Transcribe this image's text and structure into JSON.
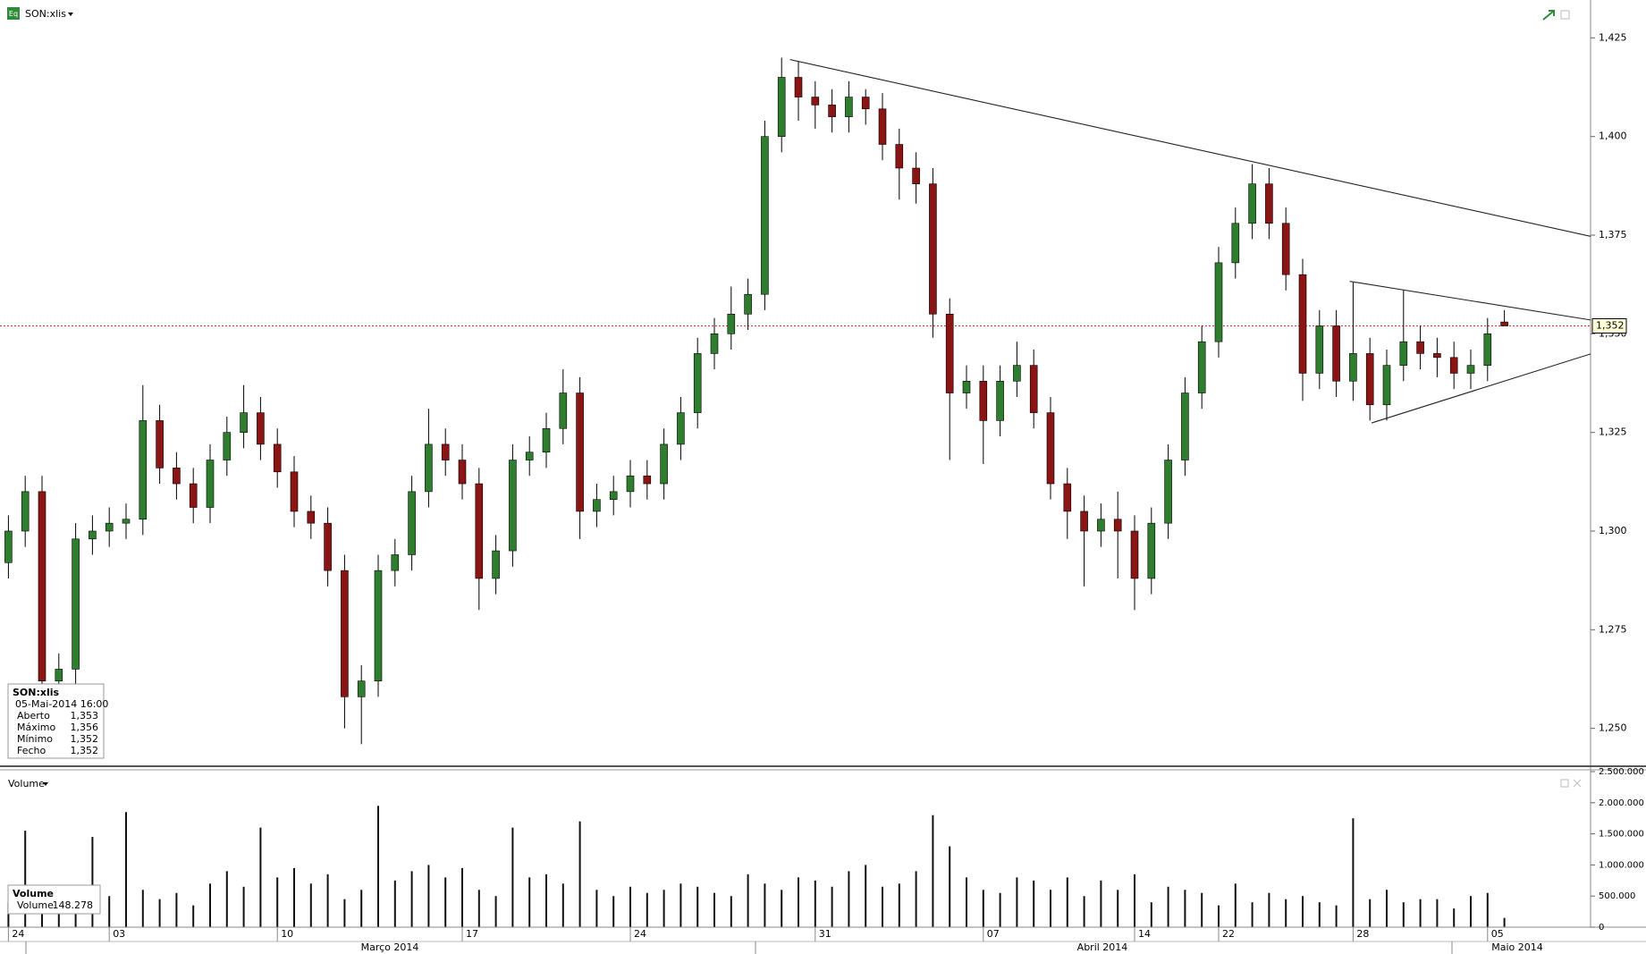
{
  "header": {
    "icon": "Eq",
    "symbol": "SON:xlis"
  },
  "chart_data": [
    {
      "type": "candlestick",
      "categories": [
        "24",
        null,
        null,
        null,
        null,
        null,
        "03",
        null,
        null,
        null,
        null,
        null,
        null,
        null,
        null,
        null,
        "10",
        null,
        null,
        null,
        null,
        null,
        null,
        null,
        null,
        null,
        null,
        "17",
        null,
        null,
        null,
        null,
        null,
        null,
        null,
        null,
        null,
        "24",
        null,
        null,
        null,
        null,
        null,
        null,
        null,
        null,
        null,
        null,
        "31",
        null,
        null,
        null,
        null,
        null,
        null,
        null,
        null,
        null,
        "07",
        null,
        null,
        null,
        null,
        null,
        null,
        null,
        null,
        "14",
        null,
        null,
        null,
        null,
        "22",
        null,
        null,
        null,
        null,
        null,
        null,
        null,
        "28",
        null,
        null,
        null,
        null,
        null,
        null,
        null,
        "05",
        null
      ],
      "x_groups": [
        "Março 2014",
        "Abril 2014",
        "Maio 2014"
      ],
      "open": [
        1.292,
        1.3,
        1.31,
        1.262,
        1.265,
        1.298,
        1.3,
        1.302,
        1.303,
        1.328,
        1.316,
        1.312,
        1.306,
        1.318,
        1.325,
        1.33,
        1.322,
        1.315,
        1.305,
        1.302,
        1.29,
        1.258,
        1.262,
        1.29,
        1.294,
        1.31,
        1.322,
        1.318,
        1.312,
        1.288,
        1.295,
        1.318,
        1.32,
        1.326,
        1.335,
        1.305,
        1.308,
        1.31,
        1.314,
        1.312,
        1.322,
        1.33,
        1.345,
        1.35,
        1.355,
        1.36,
        1.4,
        1.415,
        1.41,
        1.408,
        1.405,
        1.41,
        1.407,
        1.398,
        1.392,
        1.388,
        1.355,
        1.335,
        1.338,
        1.328,
        1.338,
        1.342,
        1.33,
        1.312,
        1.305,
        1.3,
        1.303,
        1.3,
        1.288,
        1.302,
        1.318,
        1.335,
        1.348,
        1.368,
        1.378,
        1.388,
        1.378,
        1.365,
        1.34,
        1.352,
        1.338,
        1.345,
        1.332,
        1.342,
        1.348,
        1.345,
        1.344,
        1.34,
        1.342,
        1.353
      ],
      "high": [
        1.304,
        1.314,
        1.314,
        1.269,
        1.302,
        1.304,
        1.306,
        1.307,
        1.337,
        1.332,
        1.32,
        1.316,
        1.322,
        1.329,
        1.337,
        1.334,
        1.326,
        1.319,
        1.309,
        1.306,
        1.294,
        1.266,
        1.294,
        1.298,
        1.314,
        1.331,
        1.326,
        1.322,
        1.316,
        1.299,
        1.322,
        1.324,
        1.33,
        1.341,
        1.339,
        1.312,
        1.314,
        1.318,
        1.318,
        1.326,
        1.334,
        1.349,
        1.354,
        1.362,
        1.364,
        1.404,
        1.42,
        1.419,
        1.414,
        1.412,
        1.414,
        1.412,
        1.411,
        1.402,
        1.396,
        1.392,
        1.359,
        1.342,
        1.342,
        1.342,
        1.348,
        1.346,
        1.334,
        1.316,
        1.309,
        1.307,
        1.31,
        1.304,
        1.306,
        1.322,
        1.339,
        1.352,
        1.372,
        1.382,
        1.393,
        1.392,
        1.382,
        1.369,
        1.356,
        1.356,
        1.363,
        1.349,
        1.346,
        1.361,
        1.352,
        1.349,
        1.348,
        1.346,
        1.354,
        1.356
      ],
      "low": [
        1.288,
        1.296,
        1.255,
        1.258,
        1.261,
        1.294,
        1.296,
        1.298,
        1.299,
        1.312,
        1.308,
        1.302,
        1.302,
        1.314,
        1.321,
        1.318,
        1.311,
        1.301,
        1.298,
        1.286,
        1.25,
        1.246,
        1.258,
        1.286,
        1.29,
        1.306,
        1.314,
        1.308,
        1.28,
        1.284,
        1.291,
        1.314,
        1.316,
        1.322,
        1.298,
        1.301,
        1.304,
        1.306,
        1.308,
        1.308,
        1.318,
        1.326,
        1.341,
        1.346,
        1.351,
        1.356,
        1.396,
        1.404,
        1.402,
        1.401,
        1.401,
        1.403,
        1.394,
        1.384,
        1.383,
        1.349,
        1.318,
        1.331,
        1.317,
        1.324,
        1.334,
        1.326,
        1.308,
        1.298,
        1.286,
        1.296,
        1.288,
        1.28,
        1.284,
        1.298,
        1.314,
        1.331,
        1.344,
        1.364,
        1.374,
        1.374,
        1.361,
        1.333,
        1.336,
        1.334,
        1.333,
        1.328,
        1.328,
        1.338,
        1.341,
        1.339,
        1.336,
        1.336,
        1.338,
        1.352
      ],
      "close": [
        1.3,
        1.31,
        1.262,
        1.265,
        1.298,
        1.3,
        1.302,
        1.303,
        1.328,
        1.316,
        1.312,
        1.306,
        1.318,
        1.325,
        1.33,
        1.322,
        1.315,
        1.305,
        1.302,
        1.29,
        1.258,
        1.262,
        1.29,
        1.294,
        1.31,
        1.322,
        1.318,
        1.312,
        1.288,
        1.295,
        1.318,
        1.32,
        1.326,
        1.335,
        1.305,
        1.308,
        1.31,
        1.314,
        1.312,
        1.322,
        1.33,
        1.345,
        1.35,
        1.355,
        1.36,
        1.4,
        1.415,
        1.41,
        1.408,
        1.405,
        1.41,
        1.407,
        1.398,
        1.392,
        1.388,
        1.355,
        1.335,
        1.338,
        1.328,
        1.338,
        1.342,
        1.33,
        1.312,
        1.305,
        1.3,
        1.303,
        1.3,
        1.288,
        1.302,
        1.318,
        1.335,
        1.348,
        1.368,
        1.378,
        1.388,
        1.378,
        1.365,
        1.34,
        1.352,
        1.338,
        1.345,
        1.332,
        1.342,
        1.348,
        1.345,
        1.344,
        1.34,
        1.342,
        1.35,
        1.352
      ],
      "up_color": "#2f7d2f",
      "down_color": "#8b1414",
      "ylim": [
        1.2404,
        1.4346
      ],
      "yticks": [
        {
          "value": 1.25,
          "label": "1,250"
        },
        {
          "value": 1.275,
          "label": "1,275"
        },
        {
          "value": 1.3,
          "label": "1,300"
        },
        {
          "value": 1.325,
          "label": "1,325"
        },
        {
          "value": 1.35,
          "label": "1,350"
        },
        {
          "value": 1.375,
          "label": "1,375"
        },
        {
          "value": 1.4,
          "label": "1,400"
        },
        {
          "value": 1.425,
          "label": "1,425"
        }
      ],
      "last_price": {
        "value": 1.352,
        "label": "1,352"
      },
      "last_price_color": "#e03030",
      "trendlines": [
        {
          "x": [
            46.5,
            94.2
          ],
          "y": [
            1.4195,
            1.3747
          ]
        },
        {
          "x": [
            79.8,
            94.2
          ],
          "y": [
            1.3633,
            1.3535
          ]
        },
        {
          "x": [
            81.1,
            94.2
          ],
          "y": [
            1.3274,
            1.3449
          ]
        }
      ]
    },
    {
      "type": "bar",
      "title": "Volume",
      "color": "#111111",
      "values": [
        400000,
        1550000,
        300000,
        650000,
        250000,
        1450000,
        500000,
        1850000,
        600000,
        450000,
        550000,
        350000,
        700000,
        900000,
        650000,
        1600000,
        800000,
        950000,
        700000,
        850000,
        450000,
        600000,
        1950000,
        750000,
        900000,
        1000000,
        800000,
        950000,
        600000,
        500000,
        1600000,
        800000,
        850000,
        700000,
        1700000,
        600000,
        500000,
        650000,
        550000,
        600000,
        700000,
        650000,
        550000,
        500000,
        850000,
        700000,
        600000,
        800000,
        750000,
        650000,
        900000,
        1000000,
        650000,
        700000,
        900000,
        1800000,
        1300000,
        800000,
        600000,
        550000,
        800000,
        750000,
        600000,
        800000,
        500000,
        750000,
        600000,
        850000,
        400000,
        650000,
        600000,
        550000,
        350000,
        700000,
        400000,
        550000,
        450000,
        500000,
        400000,
        350000,
        1750000,
        450000,
        600000,
        400000,
        450000,
        450000,
        300000,
        500000,
        550000,
        148278
      ],
      "ylim": [
        0,
        2500000
      ],
      "yticks": [
        0,
        {
          "value": 500000,
          "label": "500.000"
        },
        {
          "value": 1000000,
          "label": "1.000.000"
        },
        {
          "value": 1500000,
          "label": "1.500.000"
        },
        {
          "value": 2000000,
          "label": "2.000.000"
        },
        {
          "value": 2500000,
          "label": "2.500.000"
        }
      ]
    }
  ],
  "info_box": {
    "title": "SON:xlis",
    "date": "05-Mai-2014 16:00",
    "rows": [
      [
        "Aberto",
        "1,353"
      ],
      [
        "Máximo",
        "1,356"
      ],
      [
        "Mínimo",
        "1,352"
      ],
      [
        "Fecho",
        "1,352"
      ]
    ]
  },
  "volume_box": {
    "title": "Volume",
    "rows": [
      [
        "Volume",
        "148.278"
      ]
    ]
  }
}
